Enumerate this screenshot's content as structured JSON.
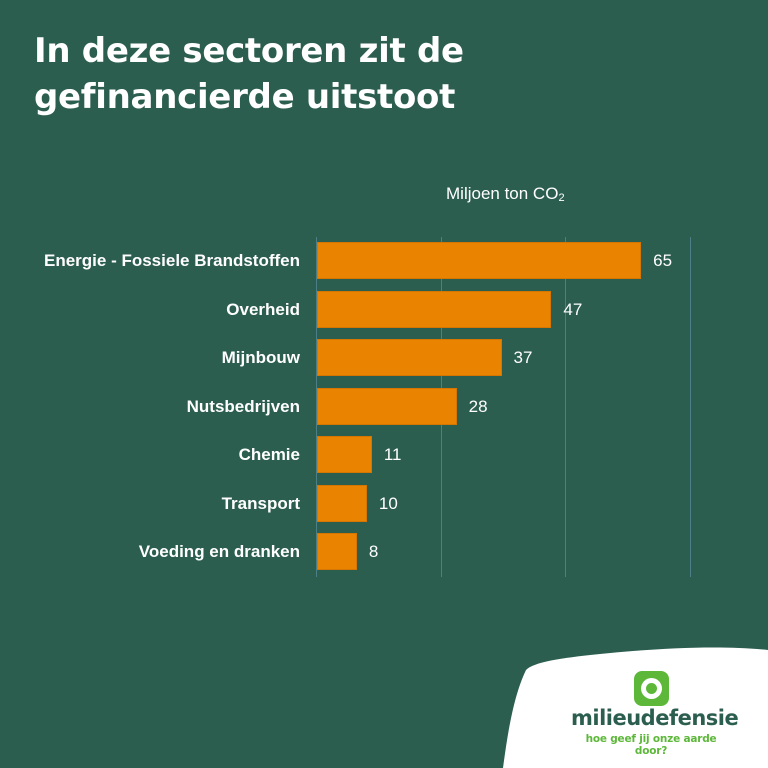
{
  "title": {
    "line1": "In deze sectoren zit de",
    "line2": "gefinancierde uitstoot"
  },
  "unit_label": {
    "text": "Miljoen ton CO",
    "subscript": "2"
  },
  "brand": {
    "name": "milieudefensie",
    "tagline": "hoe geef jij onze aarde door?",
    "icon": "ring-logo-icon",
    "colors": {
      "green": "#5db83a",
      "dark": "#2c5e4f"
    }
  },
  "colors": {
    "background": "#2c5e4f",
    "bar": "#e98300",
    "gridline": "#4d7f86",
    "text": "#ffffff"
  },
  "chart_data": {
    "type": "bar",
    "orientation": "horizontal",
    "title": "In deze sectoren zit de gefinancierde uitstoot",
    "xlabel": "Miljoen ton CO₂",
    "ylabel": "",
    "categories": [
      "Energie - Fossiele Brandstoffen",
      "Overheid",
      "Mijnbouw",
      "Nutsbedrijven",
      "Chemie",
      "Transport",
      "Voeding en dranken"
    ],
    "values": [
      65,
      47,
      37,
      28,
      11,
      10,
      8
    ],
    "value_labels": [
      "65",
      "47",
      "37",
      "28",
      "11",
      "10",
      "8"
    ],
    "xlim": [
      0,
      75
    ],
    "gridlines": [
      0,
      25,
      50,
      75
    ],
    "grid": true,
    "legend": "none",
    "data_labels": true
  }
}
